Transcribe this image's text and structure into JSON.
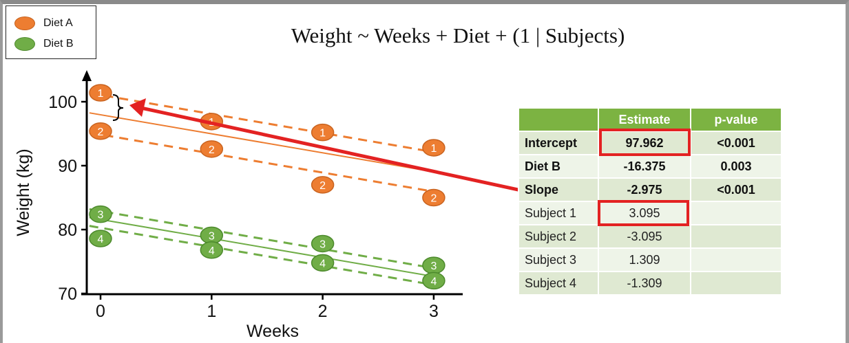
{
  "legend": {
    "items": [
      {
        "label": "Diet A",
        "color": "#ed7d31"
      },
      {
        "label": "Diet B",
        "color": "#70ad47"
      }
    ]
  },
  "formula": "Weight ~ Weeks + Diet + (1 | Subjects)",
  "colors": {
    "diet_a": "#ed7d31",
    "diet_b": "#70ad47",
    "highlight": "#e32222",
    "header": "#7cb342"
  },
  "chart_data": {
    "type": "scatter",
    "xlabel": "Weeks",
    "ylabel": "Weight (kg)",
    "xlim": [
      -0.1,
      3.25
    ],
    "ylim": [
      70,
      104
    ],
    "x_ticks": [
      0,
      1,
      2,
      3
    ],
    "y_ticks": [
      70,
      80,
      90,
      100
    ],
    "grid": false,
    "points": [
      {
        "subject": "1",
        "diet": "A",
        "x": 0,
        "y": 101.4
      },
      {
        "subject": "1",
        "diet": "A",
        "x": 1,
        "y": 96.9
      },
      {
        "subject": "1",
        "diet": "A",
        "x": 2,
        "y": 95.2
      },
      {
        "subject": "1",
        "diet": "A",
        "x": 3,
        "y": 92.8
      },
      {
        "subject": "2",
        "diet": "A",
        "x": 0,
        "y": 95.4
      },
      {
        "subject": "2",
        "diet": "A",
        "x": 1,
        "y": 92.6
      },
      {
        "subject": "2",
        "diet": "A",
        "x": 2,
        "y": 87.0
      },
      {
        "subject": "2",
        "diet": "A",
        "x": 3,
        "y": 85.0
      },
      {
        "subject": "3",
        "diet": "B",
        "x": 0,
        "y": 82.4
      },
      {
        "subject": "3",
        "diet": "B",
        "x": 1,
        "y": 79.1
      },
      {
        "subject": "3",
        "diet": "B",
        "x": 2,
        "y": 77.8
      },
      {
        "subject": "3",
        "diet": "B",
        "x": 3,
        "y": 74.4
      },
      {
        "subject": "4",
        "diet": "B",
        "x": 0,
        "y": 78.6
      },
      {
        "subject": "4",
        "diet": "B",
        "x": 1,
        "y": 76.8
      },
      {
        "subject": "4",
        "diet": "B",
        "x": 2,
        "y": 74.8
      },
      {
        "subject": "4",
        "diet": "B",
        "x": 3,
        "y": 72.0
      }
    ],
    "fitted_lines": [
      {
        "diet": "A",
        "style": "solid",
        "y0": 97.962,
        "slope": -2.975
      },
      {
        "diet": "A",
        "style": "dashed",
        "subject": "1",
        "y0": 101.057,
        "slope": -2.975
      },
      {
        "diet": "A",
        "style": "dashed",
        "subject": "2",
        "y0": 94.867,
        "slope": -2.975
      },
      {
        "diet": "B",
        "style": "solid",
        "y0": 81.587,
        "slope": -2.975
      },
      {
        "diet": "B",
        "style": "dashed",
        "subject": "3",
        "y0": 82.896,
        "slope": -2.975
      },
      {
        "diet": "B",
        "style": "dashed",
        "subject": "4",
        "y0": 80.278,
        "slope": -2.975
      }
    ]
  },
  "table": {
    "headers": [
      "",
      "Estimate",
      "p-value"
    ],
    "rows": [
      {
        "name": "Intercept",
        "estimate": "97.962",
        "pvalue": "<0.001",
        "bold": true
      },
      {
        "name": "Diet B",
        "estimate": "-16.375",
        "pvalue": "0.003",
        "bold": true
      },
      {
        "name": "Slope",
        "estimate": "-2.975",
        "pvalue": "<0.001",
        "bold": true
      },
      {
        "name": "Subject 1",
        "estimate": "3.095",
        "pvalue": "",
        "bold": false
      },
      {
        "name": "Subject 2",
        "estimate": "-3.095",
        "pvalue": "",
        "bold": false
      },
      {
        "name": "Subject 3",
        "estimate": "1.309",
        "pvalue": "",
        "bold": false
      },
      {
        "name": "Subject 4",
        "estimate": "-1.309",
        "pvalue": "",
        "bold": false
      }
    ]
  }
}
